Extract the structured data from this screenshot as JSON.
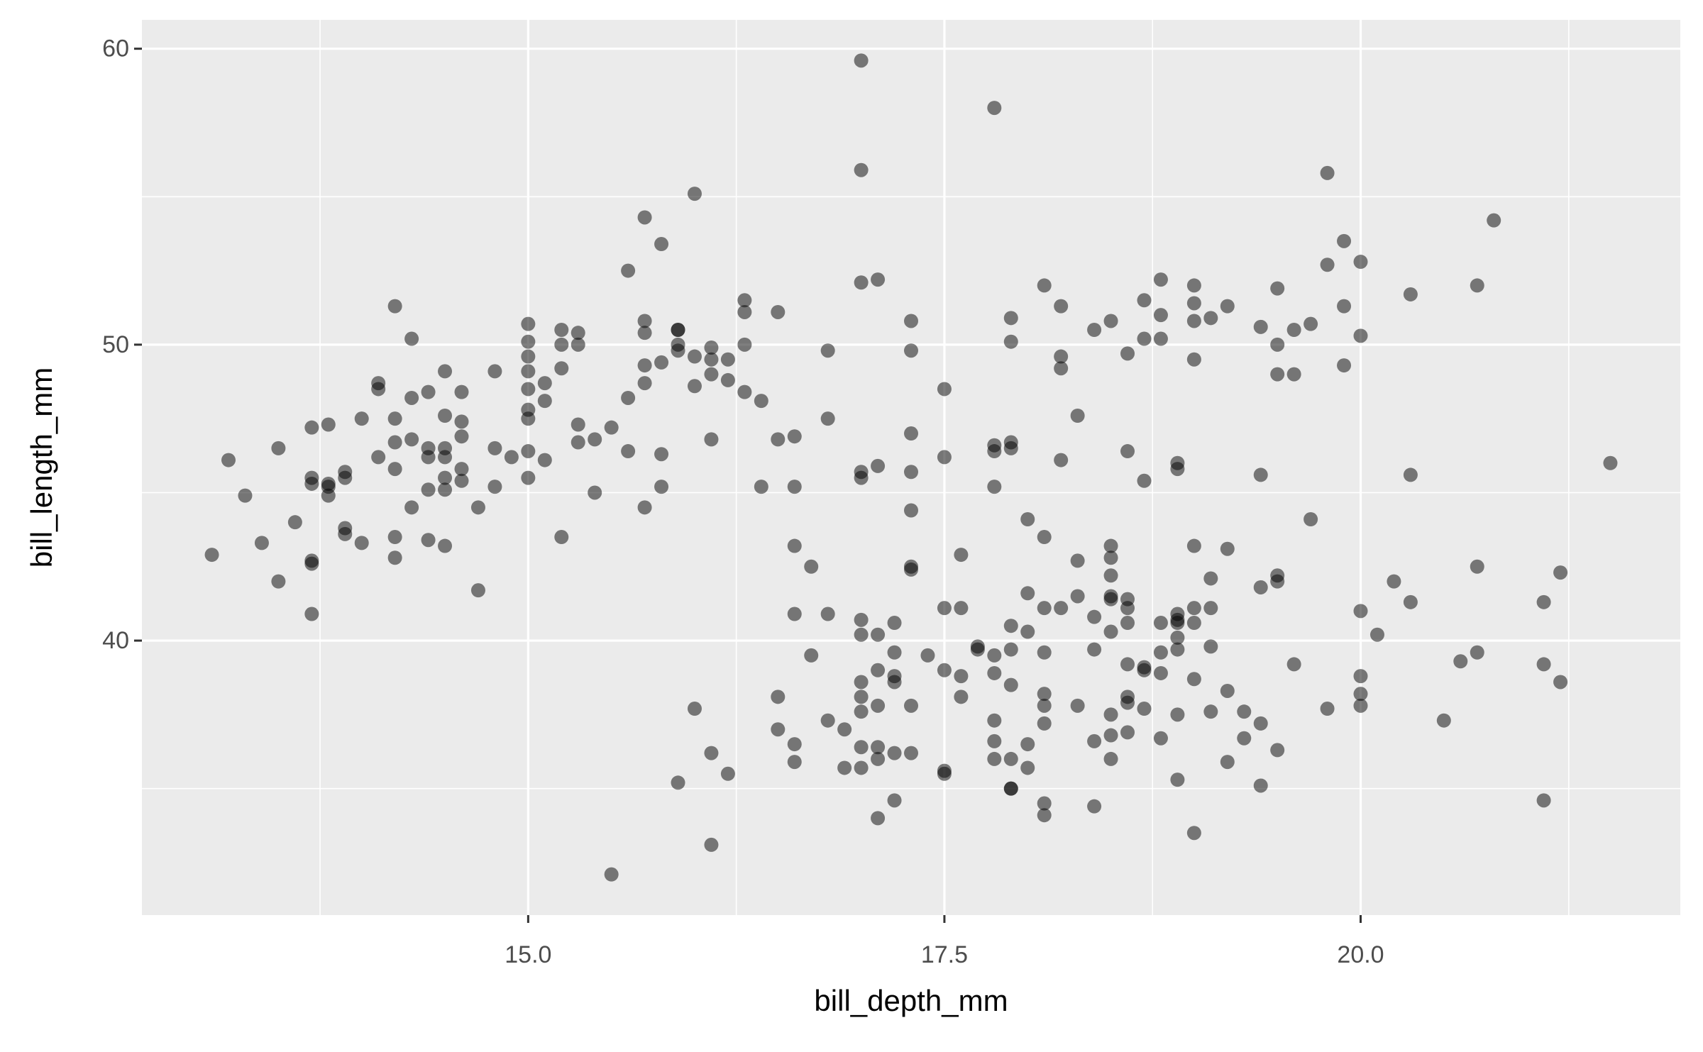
{
  "chart_data": {
    "type": "scatter",
    "x_label": "bill_depth_mm",
    "y_label": "bill_length_mm",
    "color": "#000000",
    "alpha": 0.5,
    "grid": true,
    "background": "#ebebeb",
    "xlim": [
      12.68,
      21.92
    ],
    "ylim": [
      30.725,
      60.975
    ],
    "xticks": [
      {
        "value": 15,
        "label": "15.0"
      },
      {
        "value": 17.5,
        "label": "17.5"
      },
      {
        "value": 20,
        "label": "20.0"
      }
    ],
    "yticks": [
      40,
      50,
      60
    ],
    "x": [
      13.1,
      13.2,
      13.3,
      13.4,
      13.5,
      13.5,
      13.6,
      13.7,
      13.7,
      13.7,
      13.7,
      13.7,
      13.7,
      13.8,
      13.8,
      13.8,
      13.8,
      13.9,
      13.9,
      13.9,
      13.9,
      14.0,
      14.0,
      14.1,
      14.1,
      14.1,
      14.2,
      14.2,
      14.2,
      14.2,
      14.2,
      14.2,
      14.3,
      14.3,
      14.3,
      14.3,
      14.4,
      14.4,
      14.4,
      14.4,
      14.4,
      14.5,
      14.5,
      14.5,
      14.5,
      14.5,
      14.5,
      14.5,
      14.6,
      14.6,
      14.6,
      14.6,
      14.6,
      14.7,
      14.7,
      14.8,
      14.8,
      14.8,
      14.9,
      15.0,
      15.0,
      15.0,
      15.0,
      15.0,
      15.0,
      15.0,
      15.0,
      15.0,
      15.1,
      15.1,
      15.1,
      15.2,
      15.2,
      15.2,
      15.2,
      15.3,
      15.3,
      15.3,
      15.3,
      15.4,
      15.4,
      15.5,
      15.5,
      15.6,
      15.6,
      15.6,
      15.7,
      15.7,
      15.7,
      15.7,
      15.7,
      15.7,
      15.8,
      15.8,
      15.8,
      15.8,
      15.9,
      15.9,
      15.9,
      15.9,
      15.9,
      16.0,
      16.0,
      16.0,
      16.0,
      16.1,
      16.1,
      16.1,
      16.1,
      16.1,
      16.1,
      16.2,
      16.2,
      16.2,
      16.3,
      16.3,
      16.3,
      16.3,
      16.4,
      16.4,
      16.5,
      16.5,
      16.5,
      16.5,
      16.6,
      16.6,
      16.6,
      16.6,
      16.6,
      16.6,
      16.7,
      16.7,
      16.8,
      16.8,
      16.8,
      16.8,
      16.9,
      16.9,
      17.0,
      17.0,
      17.0,
      17.0,
      17.0,
      17.0,
      17.0,
      17.0,
      17.0,
      17.0,
      17.0,
      17.0,
      17.1,
      17.1,
      17.1,
      17.1,
      17.1,
      17.1,
      17.1,
      17.1,
      17.2,
      17.2,
      17.2,
      17.2,
      17.2,
      17.2,
      17.3,
      17.3,
      17.3,
      17.3,
      17.3,
      17.3,
      17.3,
      17.3,
      17.3,
      17.4,
      17.5,
      17.5,
      17.5,
      17.5,
      17.5,
      17.5,
      17.6,
      17.6,
      17.6,
      17.6,
      17.7,
      17.7,
      17.8,
      17.8,
      17.8,
      17.8,
      17.8,
      17.8,
      17.8,
      17.8,
      17.8,
      17.9,
      17.9,
      17.9,
      17.9,
      17.9,
      17.9,
      17.9,
      17.9,
      17.9,
      17.9,
      18.0,
      18.0,
      18.0,
      18.0,
      18.0,
      18.1,
      18.1,
      18.1,
      18.1,
      18.1,
      18.1,
      18.1,
      18.1,
      18.1,
      18.2,
      18.2,
      18.2,
      18.2,
      18.2,
      18.3,
      18.3,
      18.3,
      18.3,
      18.4,
      18.4,
      18.4,
      18.4,
      18.4,
      18.5,
      18.5,
      18.5,
      18.5,
      18.5,
      18.5,
      18.5,
      18.5,
      18.5,
      18.5,
      18.6,
      18.6,
      18.6,
      18.6,
      18.6,
      18.6,
      18.6,
      18.6,
      18.6,
      18.7,
      18.7,
      18.7,
      18.7,
      18.7,
      18.7,
      18.8,
      18.8,
      18.8,
      18.8,
      18.8,
      18.8,
      18.8,
      18.9,
      18.9,
      18.9,
      18.9,
      18.9,
      18.9,
      18.9,
      18.9,
      18.9,
      19.0,
      19.0,
      19.0,
      19.0,
      19.0,
      19.0,
      19.0,
      19.0,
      19.0,
      19.1,
      19.1,
      19.1,
      19.1,
      19.1,
      19.2,
      19.2,
      19.2,
      19.2,
      19.3,
      19.3,
      19.4,
      19.4,
      19.4,
      19.4,
      19.4,
      19.5,
      19.5,
      19.5,
      19.5,
      19.5,
      19.5,
      19.6,
      19.6,
      19.6,
      19.7,
      19.7,
      19.8,
      19.8,
      19.8,
      19.9,
      19.9,
      19.9,
      20.0,
      20.0,
      20.0,
      20.0,
      20.0,
      20.0,
      20.1,
      20.2,
      20.3,
      20.3,
      20.3,
      20.5,
      20.6,
      20.7,
      20.7,
      20.7,
      20.8,
      21.1,
      21.1,
      21.1,
      21.2,
      21.2,
      21.5
    ],
    "values": [
      42.9,
      46.1,
      44.9,
      43.3,
      46.5,
      42.0,
      44.0,
      47.2,
      45.5,
      45.3,
      42.7,
      42.6,
      40.9,
      47.3,
      45.3,
      45.2,
      44.9,
      45.7,
      45.5,
      43.8,
      43.6,
      47.5,
      43.3,
      48.7,
      48.5,
      46.2,
      51.3,
      47.5,
      46.7,
      45.8,
      43.5,
      42.8,
      50.2,
      48.2,
      46.8,
      44.5,
      48.4,
      46.5,
      46.2,
      45.1,
      43.4,
      49.1,
      47.6,
      46.5,
      46.2,
      45.5,
      45.1,
      43.2,
      48.4,
      47.4,
      46.9,
      45.8,
      45.4,
      44.5,
      41.7,
      49.1,
      46.5,
      45.2,
      46.2,
      50.7,
      50.1,
      49.6,
      49.1,
      48.5,
      47.8,
      47.5,
      46.4,
      45.5,
      48.7,
      48.1,
      46.1,
      50.5,
      50.0,
      49.2,
      43.5,
      50.4,
      50.0,
      47.3,
      46.7,
      46.8,
      45.0,
      47.2,
      32.1,
      52.5,
      48.2,
      46.4,
      54.3,
      50.8,
      50.4,
      49.3,
      48.7,
      44.5,
      53.4,
      49.4,
      46.3,
      45.2,
      50.5,
      50.5,
      50.0,
      49.8,
      35.2,
      55.1,
      49.6,
      48.6,
      37.7,
      49.9,
      49.5,
      49.0,
      46.8,
      36.2,
      33.1,
      49.5,
      48.8,
      35.5,
      51.5,
      51.1,
      50.0,
      48.4,
      48.1,
      45.2,
      51.1,
      46.8,
      38.1,
      37.0,
      46.9,
      45.2,
      43.2,
      40.9,
      36.5,
      35.9,
      42.5,
      39.5,
      49.8,
      47.5,
      40.9,
      37.3,
      37.0,
      35.7,
      59.6,
      55.9,
      52.1,
      45.7,
      45.5,
      40.7,
      40.2,
      38.6,
      38.1,
      37.6,
      36.4,
      35.7,
      52.2,
      45.9,
      40.2,
      39.0,
      37.8,
      36.4,
      36.0,
      34.0,
      40.6,
      39.6,
      38.8,
      38.6,
      36.2,
      34.6,
      50.8,
      49.8,
      47.0,
      45.7,
      44.4,
      42.5,
      42.4,
      37.8,
      36.2,
      39.5,
      48.5,
      46.2,
      41.1,
      39.0,
      35.6,
      35.5,
      42.9,
      41.1,
      38.8,
      38.1,
      39.8,
      39.7,
      58.0,
      46.6,
      46.4,
      45.2,
      39.5,
      38.9,
      37.3,
      36.6,
      36.0,
      50.9,
      50.1,
      46.7,
      46.5,
      40.5,
      39.7,
      38.5,
      36.0,
      35.0,
      35.0,
      41.6,
      40.3,
      36.5,
      35.7,
      44.1,
      52.0,
      43.5,
      41.1,
      39.6,
      38.2,
      37.8,
      37.2,
      34.5,
      34.1,
      51.3,
      49.6,
      49.2,
      46.1,
      41.1,
      47.6,
      42.7,
      41.5,
      37.8,
      50.5,
      40.8,
      39.7,
      36.6,
      34.4,
      50.8,
      43.2,
      42.8,
      42.2,
      41.5,
      41.4,
      40.3,
      37.5,
      36.8,
      36.0,
      49.7,
      46.4,
      41.4,
      41.1,
      40.6,
      39.2,
      38.1,
      37.9,
      36.9,
      51.5,
      50.2,
      45.4,
      39.1,
      39.0,
      37.7,
      52.2,
      51.0,
      50.2,
      40.6,
      39.6,
      38.9,
      36.7,
      46.0,
      45.8,
      40.9,
      40.7,
      40.6,
      40.1,
      39.7,
      37.5,
      35.3,
      52.0,
      51.4,
      50.8,
      49.5,
      43.2,
      41.1,
      40.6,
      38.7,
      33.5,
      50.9,
      42.1,
      41.1,
      39.8,
      37.6,
      51.3,
      43.1,
      38.3,
      35.9,
      37.6,
      36.7,
      50.6,
      45.6,
      41.8,
      37.2,
      35.1,
      51.9,
      50.0,
      49.0,
      42.2,
      42.0,
      36.3,
      50.5,
      49.0,
      39.2,
      50.7,
      44.1,
      55.8,
      52.7,
      37.7,
      53.5,
      51.3,
      49.3,
      52.8,
      50.3,
      41.0,
      38.8,
      38.2,
      37.8,
      40.2,
      42.0,
      51.7,
      45.6,
      41.3,
      37.3,
      39.3,
      52.0,
      42.5,
      39.6,
      54.2,
      41.3,
      39.2,
      34.6,
      42.3,
      38.6,
      46.0
    ]
  }
}
